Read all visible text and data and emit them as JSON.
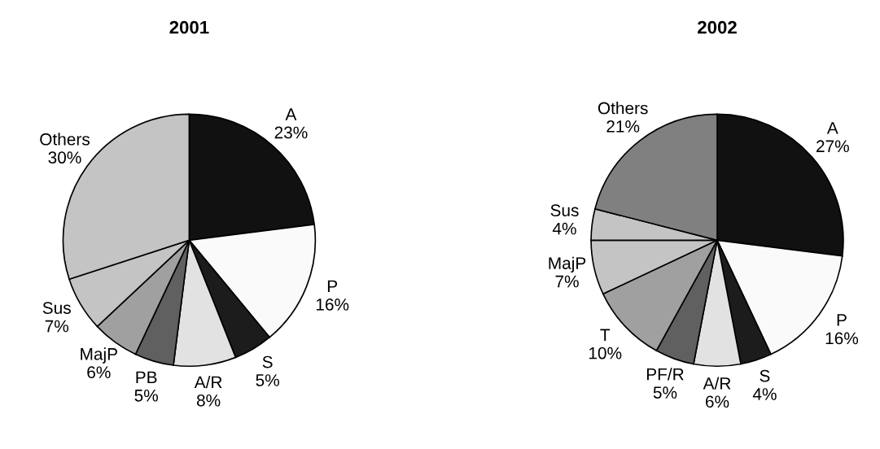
{
  "chart_data": [
    {
      "type": "pie",
      "title": "2001",
      "categories": [
        "A",
        "P",
        "S",
        "A/R",
        "PB",
        "MajP",
        "Sus",
        "Others"
      ],
      "values": [
        23,
        16,
        5,
        8,
        5,
        6,
        7,
        30
      ],
      "value_labels": [
        "23%",
        "16%",
        "5%",
        "8%",
        "5%",
        "6%",
        "7%",
        "30%"
      ],
      "colors": [
        "#111111",
        "#fafafa",
        "#1c1c1c",
        "#e2e2e2",
        "#606060",
        "#a0a0a0",
        "#c4c4c4",
        "#c4c4c4"
      ]
    },
    {
      "type": "pie",
      "title": "2002",
      "categories": [
        "A",
        "P",
        "S",
        "A/R",
        "PF/R",
        "T",
        "MajP",
        "Sus",
        "Others"
      ],
      "values": [
        27,
        16,
        4,
        6,
        5,
        10,
        7,
        4,
        21
      ],
      "value_labels": [
        "27%",
        "16%",
        "4%",
        "6%",
        "5%",
        "10%",
        "7%",
        "4%",
        "21%"
      ],
      "colors": [
        "#111111",
        "#fafafa",
        "#1c1c1c",
        "#e2e2e2",
        "#606060",
        "#a0a0a0",
        "#c4c4c4",
        "#c4c4c4",
        "#808080"
      ]
    }
  ]
}
